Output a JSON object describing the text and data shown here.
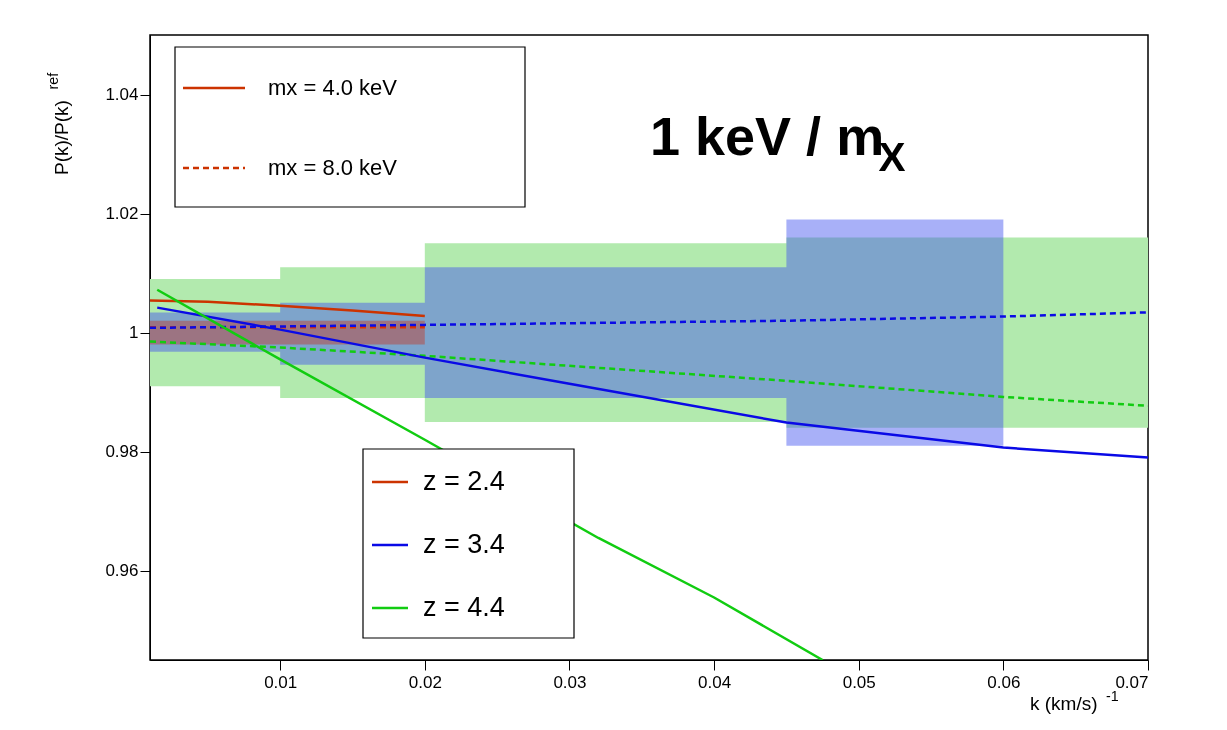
{
  "chart_data": {
    "type": "line",
    "xlabel": "k (km/s)$^{-1}$",
    "ylabel": "P(k)/P(k)$^{ref}$",
    "xlim": [
      0.001,
      0.07
    ],
    "ylim": [
      0.945,
      1.05
    ],
    "xticks": [
      0.01,
      0.02,
      0.03,
      0.04,
      0.05,
      0.06,
      0.07
    ],
    "yticks": [
      0.96,
      0.98,
      1,
      1.02,
      1.04
    ],
    "grid": false,
    "legend": "bottom left",
    "annotations": [
      "1 keV / m$_{X}$",
      "mx = 4.0 keV",
      "mx = 8.0 keV"
    ],
    "series": [
      {
        "type": "step",
        "color": "#b2eaae",
        "x": [
          0.001,
          0.01,
          0.02,
          0.045,
          0.06,
          0.07
        ],
        "values": [
          null,
          null,
          null,
          null,
          null,
          null
        ],
        "lower": [
          0.991,
          0.989,
          0.985,
          0.984,
          0.984,
          0.984
        ],
        "upper": [
          1.009,
          1.011,
          1.015,
          1.016,
          1.016,
          1.016
        ]
      },
      {
        "type": "step",
        "color": "#3f4ff0",
        "x": [
          0.001,
          0.01,
          0.02,
          0.045,
          0.06
        ],
        "values": [
          null,
          null,
          null,
          null,
          null
        ],
        "lower": [
          0.9968,
          0.9946,
          0.989,
          0.981,
          0.981
        ],
        "upper": [
          1.0034,
          1.005,
          1.011,
          1.019,
          1.019
        ]
      },
      {
        "type": "step",
        "color": "#c0392b",
        "x": [
          0.001,
          0.02
        ],
        "values": [
          null,
          null
        ],
        "lower": [
          0.998,
          0.998
        ],
        "upper": [
          1.002,
          1.002
        ]
      },
      {
        "type": "line",
        "color": "#dd3300",
        "line_style": "dashed",
        "x": [
          0.001,
          0.01,
          0.02
        ],
        "values": [
          1.0009,
          1.0009,
          1.0009
        ]
      },
      {
        "type": "line",
        "color": "#0a0ae6",
        "line_style": "dashed",
        "x": [
          0.001,
          0.02,
          0.045,
          0.06,
          0.07
        ],
        "values": [
          1.0008,
          1.0013,
          1.002,
          1.0027,
          1.0034
        ]
      },
      {
        "type": "line",
        "color": "#11cc11",
        "line_style": "dashed",
        "x": [
          0.001,
          0.01,
          0.02,
          0.045,
          0.06,
          0.07
        ],
        "values": [
          0.9985,
          0.9975,
          0.9961,
          0.9919,
          0.9892,
          0.9877
        ]
      },
      {
        "type": "line",
        "name": "z = 2.4",
        "color": "#cc3300",
        "line_style": "solid",
        "x": [
          0.001,
          0.005,
          0.01,
          0.015,
          0.02
        ],
        "values": [
          1.0054,
          1.0052,
          1.0045,
          1.0037,
          1.0028
        ]
      },
      {
        "type": "line",
        "name": "z = 3.4",
        "color": "#0a0ae6",
        "line_style": "solid",
        "x": [
          0.0015,
          0.01,
          0.02,
          0.03,
          0.045,
          0.06,
          0.07
        ],
        "values": [
          1.0042,
          1.0005,
          0.9958,
          0.9914,
          0.9849,
          0.9807,
          0.979
        ]
      },
      {
        "type": "line",
        "name": "z = 4.4",
        "color": "#11cc11",
        "line_style": "solid",
        "x": [
          0.0015,
          0.01,
          0.02,
          0.032,
          0.04,
          0.0475
        ],
        "values": [
          1.0072,
          0.9955,
          0.982,
          0.9655,
          0.9555,
          0.945
        ]
      }
    ]
  }
}
